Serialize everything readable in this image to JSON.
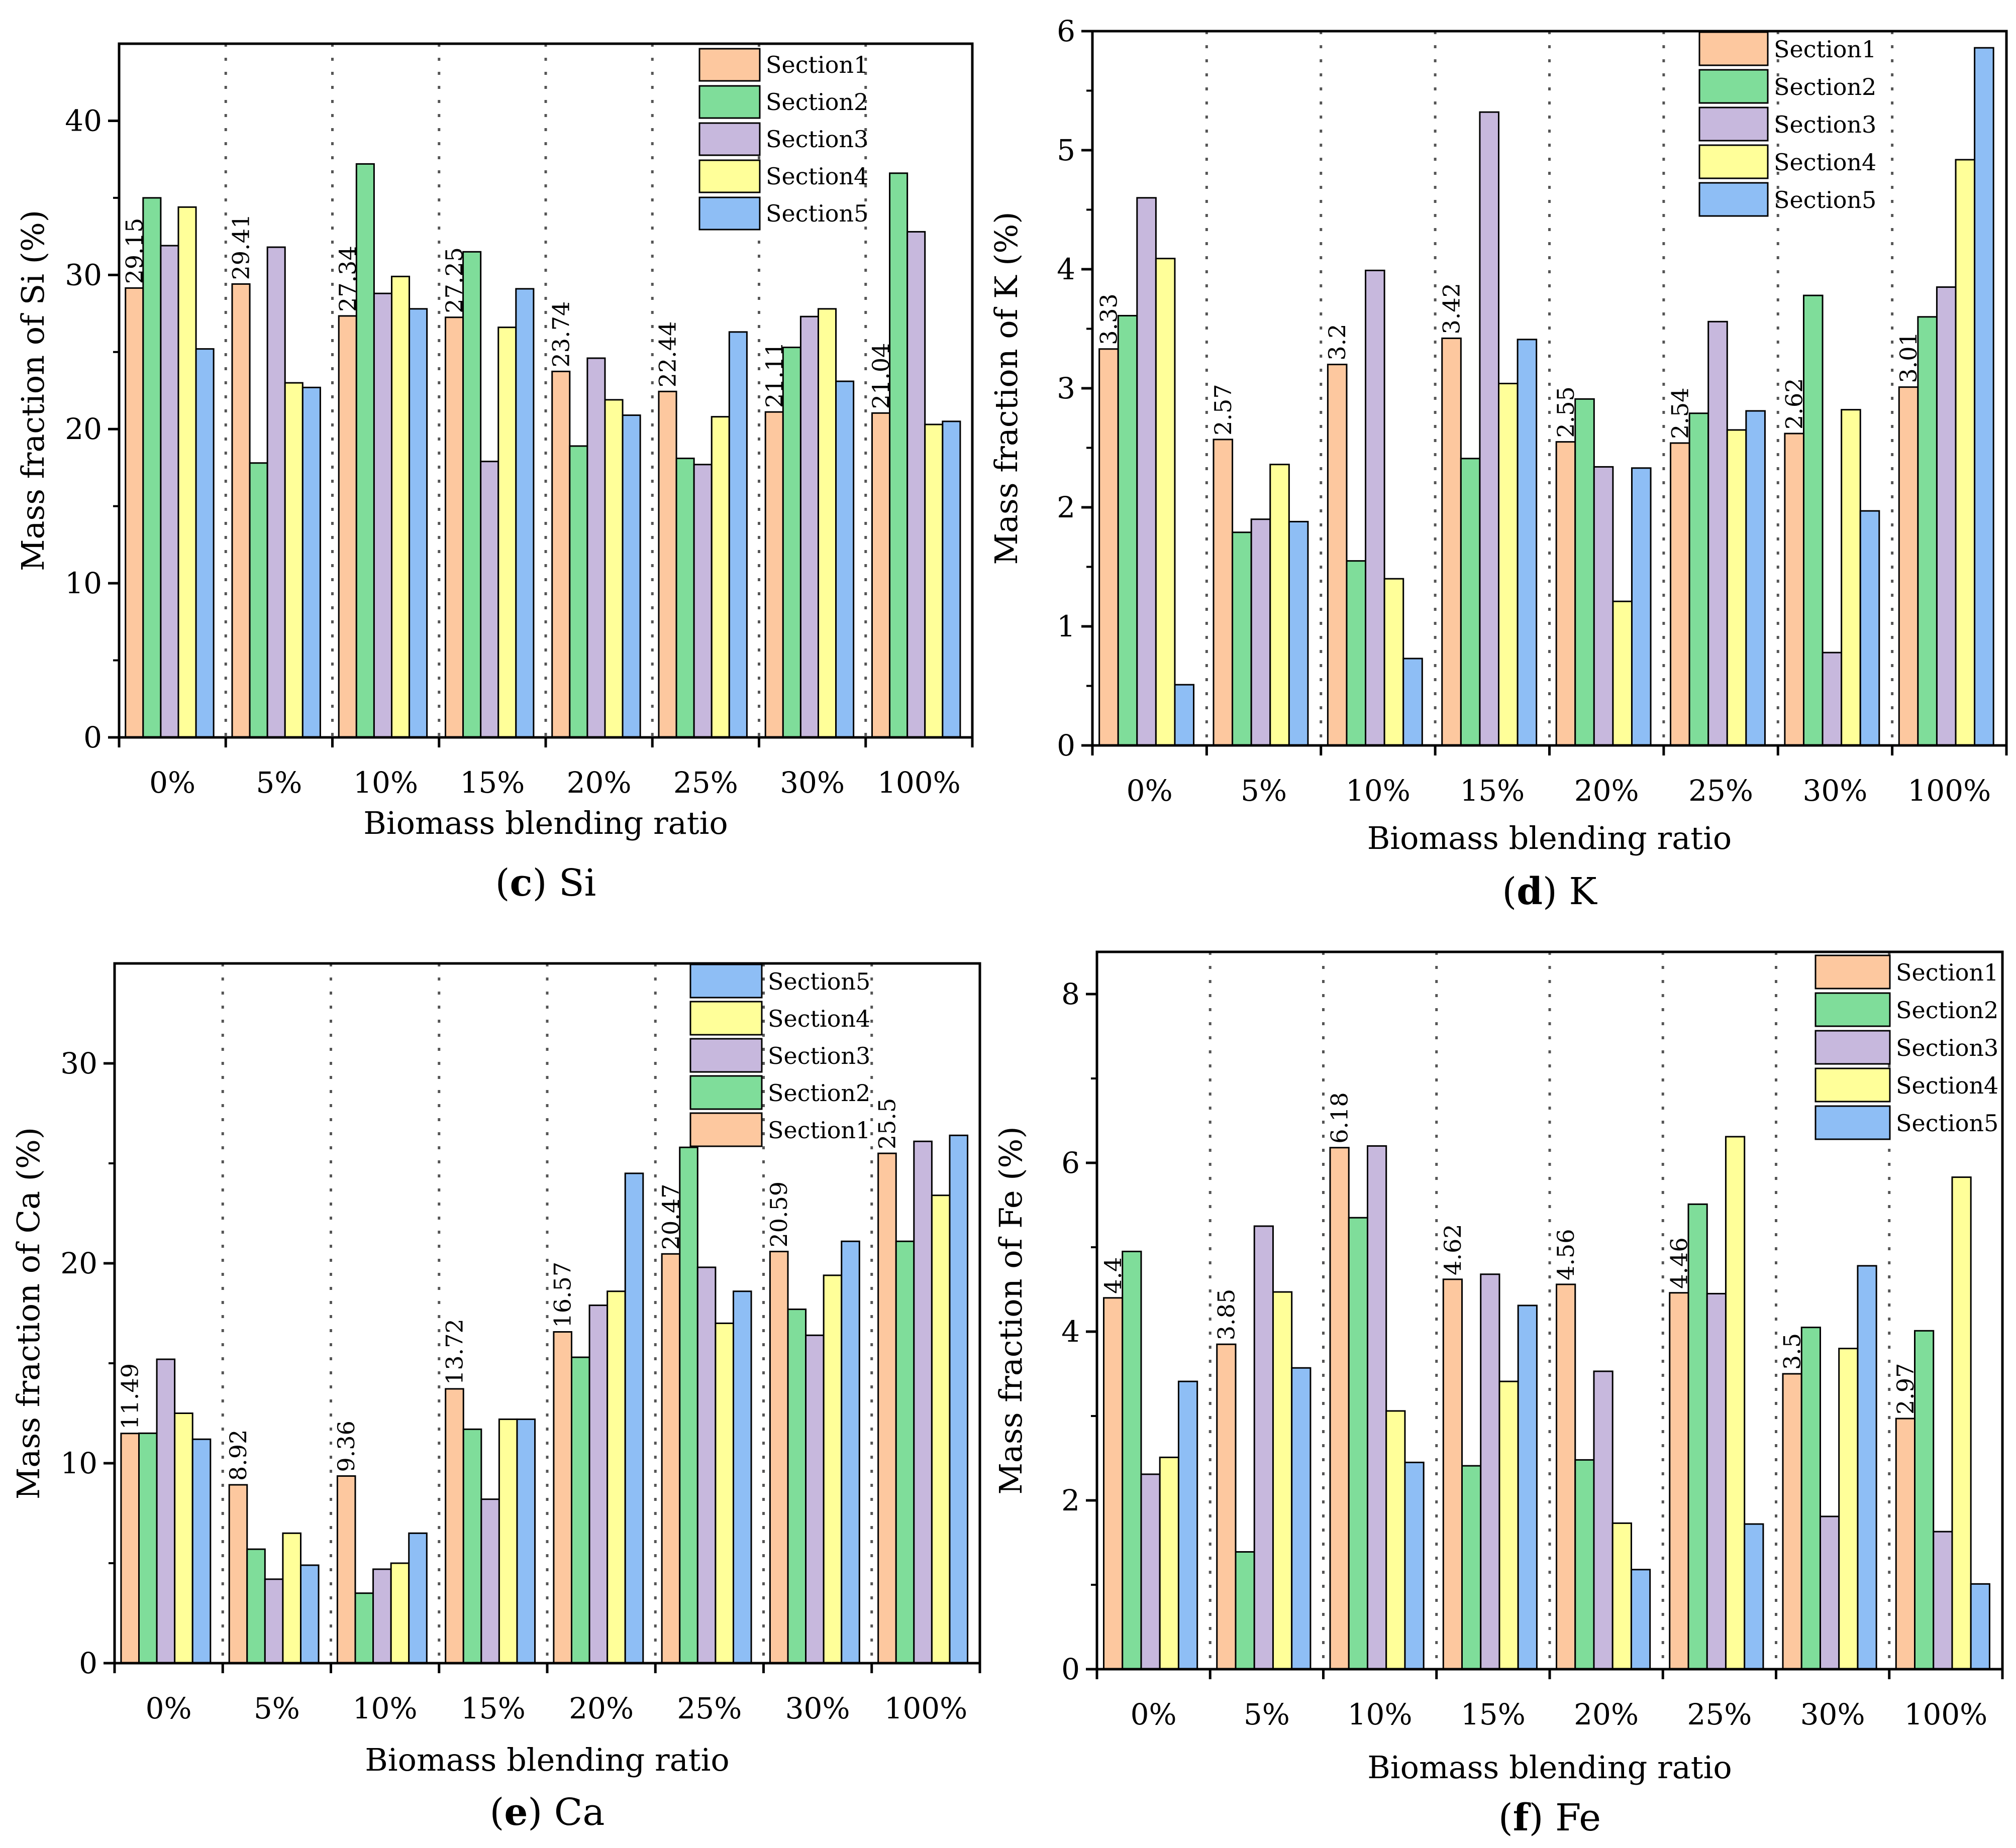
{
  "colors": {
    "Section1": "#FDC89F",
    "Section2": "#7FDD9A",
    "Section3": "#C7B8DD",
    "Section4": "#FFFF99",
    "Section5": "#8EBEF5"
  },
  "chart_data": [
    {
      "type": "bar",
      "panel": "c",
      "caption_letter": "c",
      "caption_text": "Si",
      "title": "(c) Si",
      "xlabel": "Biomass blending ratio",
      "ylabel": "Mass fraction of Si (%)",
      "ylim": [
        0,
        45
      ],
      "yticks": [
        "0",
        "10",
        "20",
        "30",
        "40"
      ],
      "ytick_values": [
        0,
        10,
        20,
        30,
        40
      ],
      "categories": [
        "0%",
        "5%",
        "10%",
        "15%",
        "20%",
        "25%",
        "30%",
        "100%"
      ],
      "legend_order": [
        "Section1",
        "Section2",
        "Section3",
        "Section4",
        "Section5"
      ],
      "legend_position": "top-right",
      "series": [
        {
          "name": "Section1",
          "values": [
            29.15,
            29.41,
            27.34,
            27.25,
            23.74,
            22.44,
            21.11,
            21.04
          ]
        },
        {
          "name": "Section2",
          "values": [
            35.0,
            17.8,
            37.2,
            31.5,
            18.9,
            18.1,
            25.3,
            36.6
          ]
        },
        {
          "name": "Section3",
          "values": [
            31.9,
            31.8,
            28.8,
            17.9,
            24.6,
            17.7,
            27.3,
            32.8
          ]
        },
        {
          "name": "Section4",
          "values": [
            34.4,
            23.0,
            29.9,
            26.6,
            21.9,
            20.8,
            27.8,
            20.3
          ]
        },
        {
          "name": "Section5",
          "values": [
            25.2,
            22.7,
            27.8,
            29.1,
            20.9,
            26.3,
            23.1,
            20.5
          ]
        }
      ],
      "data_labels": [
        "29.15",
        "29.41",
        "27.34",
        "27.25",
        "23.74",
        "22.44",
        "21.11",
        "21.04"
      ]
    },
    {
      "type": "bar",
      "panel": "d",
      "caption_letter": "d",
      "caption_text": "K",
      "title": "(d) K",
      "xlabel": "Biomass blending ratio",
      "ylabel": "Mass fraction of K (%)",
      "ylim": [
        0,
        6
      ],
      "yticks": [
        "0",
        "1",
        "2",
        "3",
        "4",
        "5",
        "6"
      ],
      "ytick_values": [
        0,
        1,
        2,
        3,
        4,
        5,
        6
      ],
      "categories": [
        "0%",
        "5%",
        "10%",
        "15%",
        "20%",
        "25%",
        "30%",
        "100%"
      ],
      "legend_order": [
        "Section1",
        "Section2",
        "Section3",
        "Section4",
        "Section5"
      ],
      "legend_position": "top-right",
      "series": [
        {
          "name": "Section1",
          "values": [
            3.33,
            2.57,
            3.2,
            3.42,
            2.55,
            2.54,
            2.62,
            3.01
          ]
        },
        {
          "name": "Section2",
          "values": [
            3.61,
            1.79,
            1.55,
            2.41,
            2.91,
            2.79,
            3.78,
            3.6
          ]
        },
        {
          "name": "Section3",
          "values": [
            4.6,
            1.9,
            3.99,
            5.32,
            2.34,
            3.56,
            0.78,
            3.85
          ]
        },
        {
          "name": "Section4",
          "values": [
            4.09,
            2.36,
            1.4,
            3.04,
            1.21,
            2.65,
            2.82,
            4.92
          ]
        },
        {
          "name": "Section5",
          "values": [
            0.51,
            1.88,
            0.73,
            3.41,
            2.33,
            2.81,
            1.97,
            5.86
          ]
        }
      ],
      "data_labels": [
        "3.33",
        "2.57",
        "3.2",
        "3.42",
        "2.55",
        "2.54",
        "2.62",
        "3.01"
      ]
    },
    {
      "type": "bar",
      "panel": "e",
      "caption_letter": "e",
      "caption_text": "Ca",
      "title": "(e) Ca",
      "xlabel": "Biomass blending ratio",
      "ylabel": "Mass fraction of Ca (%)",
      "ylim": [
        0,
        35
      ],
      "yticks": [
        "0",
        "10",
        "20",
        "30"
      ],
      "ytick_values": [
        0,
        10,
        20,
        30
      ],
      "categories": [
        "0%",
        "5%",
        "10%",
        "15%",
        "20%",
        "25%",
        "30%",
        "100%"
      ],
      "legend_order": [
        "Section5",
        "Section4",
        "Section3",
        "Section2",
        "Section1"
      ],
      "legend_position": "top-center",
      "series": [
        {
          "name": "Section1",
          "values": [
            11.49,
            8.92,
            9.36,
            13.72,
            16.57,
            20.47,
            20.59,
            25.5
          ]
        },
        {
          "name": "Section2",
          "values": [
            11.5,
            5.7,
            3.5,
            11.7,
            15.3,
            25.8,
            17.7,
            21.1
          ]
        },
        {
          "name": "Section3",
          "values": [
            15.2,
            4.2,
            4.7,
            8.2,
            17.9,
            19.8,
            16.4,
            26.1
          ]
        },
        {
          "name": "Section4",
          "values": [
            12.5,
            6.5,
            5.0,
            12.2,
            18.6,
            17.0,
            19.4,
            23.4
          ]
        },
        {
          "name": "Section5",
          "values": [
            11.2,
            4.9,
            6.5,
            12.2,
            24.5,
            18.6,
            21.1,
            26.4
          ]
        }
      ],
      "data_labels": [
        "11.49",
        "8.92",
        "9.36",
        "13.72",
        "16.57",
        "20.47",
        "20.59",
        "25.5"
      ]
    },
    {
      "type": "bar",
      "panel": "f",
      "caption_letter": "f",
      "caption_text": "Fe",
      "title": "(f) Fe",
      "xlabel": "Biomass blending ratio",
      "ylabel": "Mass fraction of Fe (%)",
      "ylim": [
        0,
        8.5
      ],
      "yticks": [
        "0",
        "2",
        "4",
        "6",
        "8"
      ],
      "ytick_values": [
        0,
        2,
        4,
        6,
        8
      ],
      "categories": [
        "0%",
        "5%",
        "10%",
        "15%",
        "20%",
        "25%",
        "30%",
        "100%"
      ],
      "legend_order": [
        "Section1",
        "Section2",
        "Section3",
        "Section4",
        "Section5"
      ],
      "legend_position": "top-right",
      "series": [
        {
          "name": "Section1",
          "values": [
            4.4,
            3.85,
            6.18,
            4.62,
            4.56,
            4.46,
            3.5,
            2.97
          ]
        },
        {
          "name": "Section2",
          "values": [
            4.95,
            1.39,
            5.35,
            2.41,
            2.48,
            5.51,
            4.05,
            4.01
          ]
        },
        {
          "name": "Section3",
          "values": [
            2.31,
            5.25,
            6.2,
            4.68,
            3.53,
            4.45,
            1.81,
            1.63
          ]
        },
        {
          "name": "Section4",
          "values": [
            2.51,
            4.47,
            3.06,
            3.41,
            1.73,
            6.31,
            3.8,
            5.83
          ]
        },
        {
          "name": "Section5",
          "values": [
            3.41,
            3.57,
            2.45,
            4.31,
            1.18,
            1.72,
            4.78,
            1.01
          ]
        }
      ],
      "data_labels": [
        "4.4",
        "3.85",
        "6.18",
        "4.62",
        "4.56",
        "4.46",
        "3.5",
        "2.97"
      ]
    }
  ]
}
